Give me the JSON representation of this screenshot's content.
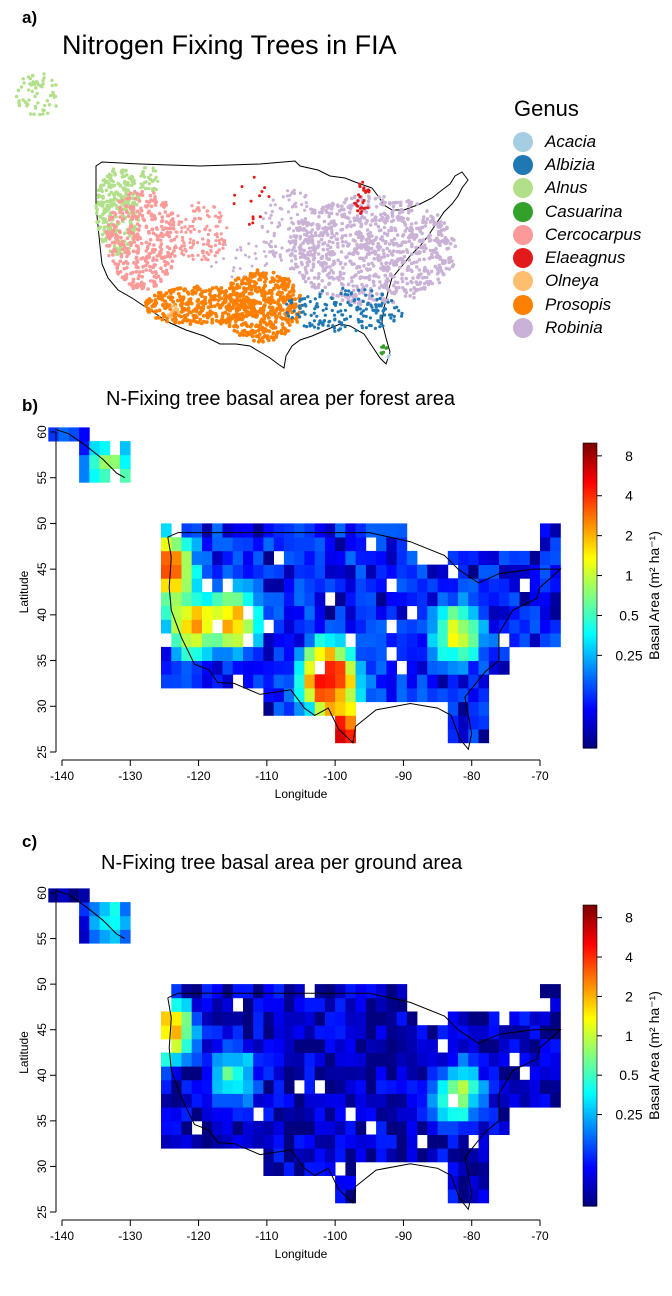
{
  "figure": {
    "panel_a": {
      "letter": "a)",
      "title": "Nitrogen Fixing Trees in FIA",
      "legend_title": "Genus",
      "genera": [
        {
          "name": "Acacia",
          "color": "#a6cee3"
        },
        {
          "name": "Albizia",
          "color": "#1f78b4"
        },
        {
          "name": "Alnus",
          "color": "#b2df8a"
        },
        {
          "name": "Casuarina",
          "color": "#33a02c"
        },
        {
          "name": "Cercocarpus",
          "color": "#fb9a99"
        },
        {
          "name": "Elaeagnus",
          "color": "#e31a1c"
        },
        {
          "name": "Olneya",
          "color": "#fdbf6f"
        },
        {
          "name": "Prosopis",
          "color": "#ff7f00"
        },
        {
          "name": "Robinia",
          "color": "#cab2d6"
        }
      ]
    },
    "panel_b": {
      "letter": "b)",
      "title": "N-Fixing tree basal area per forest area"
    },
    "panel_c": {
      "letter": "c)",
      "title": "N-Fixing tree basal area per ground area"
    }
  },
  "chart_data": [
    {
      "type": "scatter",
      "title": "Nitrogen Fixing Trees in FIA",
      "legend_title": "Genus",
      "series": [
        {
          "name": "Acacia",
          "color": "#a6cee3"
        },
        {
          "name": "Albizia",
          "color": "#1f78b4"
        },
        {
          "name": "Alnus",
          "color": "#b2df8a"
        },
        {
          "name": "Casuarina",
          "color": "#33a02c"
        },
        {
          "name": "Cercocarpus",
          "color": "#fb9a99"
        },
        {
          "name": "Elaeagnus",
          "color": "#e31a1c"
        },
        {
          "name": "Olneya",
          "color": "#fdbf6f"
        },
        {
          "name": "Prosopis",
          "color": "#ff7f00"
        },
        {
          "name": "Robinia",
          "color": "#cab2d6"
        }
      ],
      "legend_position": "right"
    },
    {
      "type": "heatmap",
      "title": "N-Fixing tree basal area per forest area",
      "xlabel": "Longitude",
      "ylabel": "Latitude",
      "xlim": [
        -140,
        -70
      ],
      "ylim": [
        25,
        60
      ],
      "xticks": [
        -140,
        -130,
        -120,
        -110,
        -100,
        -90,
        -80,
        -70
      ],
      "yticks": [
        25,
        30,
        35,
        40,
        45,
        50,
        55,
        60
      ],
      "colorbar_label": "Basal Area (m² ha⁻¹)",
      "colorbar_ticks": [
        0.25,
        0.5,
        1,
        2,
        4,
        8
      ],
      "colorbar_scale": "log",
      "hotspots": [
        {
          "lon": -124.5,
          "lat": 45,
          "value": 3.5
        },
        {
          "lon": -101,
          "lat": 33,
          "value": 6
        },
        {
          "lon": -99,
          "lat": 27,
          "value": 5
        },
        {
          "lon": -115,
          "lat": 39.5,
          "value": 2
        },
        {
          "lon": -121,
          "lat": 39,
          "value": 2
        },
        {
          "lon": -82,
          "lat": 38,
          "value": 1.2
        },
        {
          "lon": -133,
          "lat": 56,
          "value": 0.8
        }
      ]
    },
    {
      "type": "heatmap",
      "title": "N-Fixing tree basal area per ground area",
      "xlabel": "Longitude",
      "ylabel": "Latitude",
      "xlim": [
        -140,
        -70
      ],
      "ylim": [
        25,
        60
      ],
      "xticks": [
        -140,
        -130,
        -120,
        -110,
        -100,
        -90,
        -80,
        -70
      ],
      "yticks": [
        25,
        30,
        35,
        40,
        45,
        50,
        55,
        60
      ],
      "colorbar_label": "Basal Area (m² ha⁻¹)",
      "colorbar_ticks": [
        0.25,
        0.5,
        1,
        2,
        4,
        8
      ],
      "colorbar_scale": "log",
      "hotspots": [
        {
          "lon": -124.5,
          "lat": 45,
          "value": 2
        },
        {
          "lon": -82,
          "lat": 38,
          "value": 0.8
        },
        {
          "lon": -115,
          "lat": 40,
          "value": 0.5
        },
        {
          "lon": -133,
          "lat": 57,
          "value": 0.4
        }
      ]
    }
  ]
}
